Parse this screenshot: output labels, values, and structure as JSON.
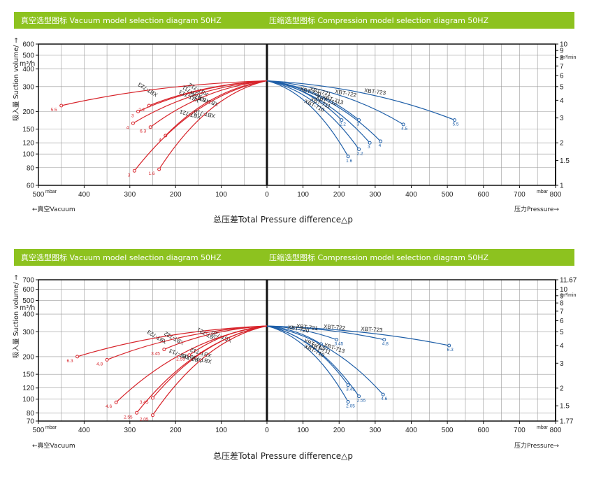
{
  "colors": {
    "header_bg": "#8dc21f",
    "vacuum": "#d7232a",
    "compression": "#1f5fa8",
    "grid": "#999999",
    "frame": "#111111"
  },
  "charts": [
    {
      "vacuum_title": "真空选型图标  Vacuum model selection  diagram 50HZ",
      "compression_title": "压缩选型图标  Compression model selection  diagram 50HZ",
      "y_left_label": "吸入量 Suction volume/ →",
      "y_left_unit": "m³/h",
      "y_right_unit": "m³/min",
      "mbar_left": "mbar",
      "mbar_right": "mbar",
      "vacuum_label": "←真空Vacuum",
      "pressure_label": "压力Pressure→",
      "x_title": "总压差Total Pressure difference△p",
      "left_x_ticks": [
        "500",
        "400",
        "300",
        "200",
        "100",
        "0"
      ],
      "right_x_ticks": [
        "0",
        "100",
        "200",
        "300",
        "400",
        "500",
        "600",
        "700",
        "800"
      ],
      "left_y_ticks": [
        "600",
        "500",
        "400",
        "300",
        "200",
        "150",
        "120",
        "100",
        "80",
        "60"
      ],
      "right_y_ticks": [
        "10",
        "9",
        "8",
        "7",
        "6",
        "5",
        "4",
        "3",
        "2",
        "1.5",
        "1"
      ]
    },
    {
      "vacuum_title": "真空选型图标  Vacuum model selection  diagram 50HZ",
      "compression_title": "压缩选型图标  Compression model selection  diagram 50HZ",
      "y_left_label": "吸入量 Suction volume/ →",
      "y_left_unit": "m³/h",
      "y_right_unit": "m³/min",
      "mbar_left": "mbar",
      "mbar_right": "mbar",
      "vacuum_label": "←真空Vacuum",
      "pressure_label": "压力Pressure→",
      "x_title": "总压差Total Pressure difference△p",
      "left_x_ticks": [
        "500",
        "400",
        "300",
        "200",
        "100",
        "0"
      ],
      "right_x_ticks": [
        "0",
        "100",
        "200",
        "300",
        "400",
        "500",
        "600",
        "700",
        "800"
      ],
      "left_y_ticks": [
        "700",
        "600",
        "500",
        "400",
        "300",
        "200",
        "150",
        "120",
        "100",
        "80",
        "70"
      ],
      "right_y_ticks": [
        "11.67",
        "10",
        "9",
        "8",
        "7",
        "6",
        "5",
        "4",
        "3",
        "2",
        "1.5",
        "1.77"
      ]
    }
  ],
  "chart_data": [
    {
      "type": "line",
      "title": "Vacuum model selection diagram 50HZ",
      "xlabel": "mbar",
      "ylabel": "m³/h",
      "xlim": [
        500,
        0
      ],
      "ylim": [
        60,
        600
      ],
      "y_scale": "log",
      "series": [
        {
          "name": "XBT-723",
          "end_label": "5.5",
          "points": [
            [
              0,
              330
            ],
            [
              450,
              220
            ]
          ]
        },
        {
          "name": "XBT-712",
          "end_label": "2.2",
          "points": [
            [
              0,
              330
            ],
            [
              258,
              220
            ]
          ]
        },
        {
          "name": "XBT-711",
          "end_label": "3",
          "points": [
            [
              0,
              330
            ],
            [
              282,
              200
            ]
          ]
        },
        {
          "name": "XBT-713",
          "end_label": "4",
          "points": [
            [
              0,
              330
            ],
            [
              293,
              165
            ]
          ]
        },
        {
          "name": "XBT-722",
          "end_label": "6.3",
          "points": [
            [
              0,
              330
            ],
            [
              255,
              155
            ]
          ]
        },
        {
          "name": "XBT-720",
          "end_label": "4",
          "points": [
            [
              0,
              330
            ],
            [
              222,
              135
            ]
          ]
        },
        {
          "name": "XBT-721",
          "end_label": "3",
          "points": [
            [
              0,
              330
            ],
            [
              290,
              76
            ]
          ]
        },
        {
          "name": "XBT-710",
          "end_label": "1.6",
          "points": [
            [
              0,
              330
            ],
            [
              236,
              78
            ]
          ]
        }
      ]
    },
    {
      "type": "line",
      "title": "Compression model selection diagram 50HZ",
      "xlabel": "mbar",
      "ylabel": "m³/min",
      "xlim": [
        0,
        800
      ],
      "ylim": [
        1,
        10
      ],
      "y_scale": "log",
      "series": [
        {
          "name": "XBT-723",
          "end_label": "5.5",
          "points": [
            [
              0,
              5.5
            ],
            [
              520,
              2.9
            ]
          ]
        },
        {
          "name": "XBT-722",
          "end_label": "4.5",
          "points": [
            [
              0,
              5.5
            ],
            [
              378,
              2.7
            ]
          ]
        },
        {
          "name": "XBT-713",
          "end_label": "4",
          "points": [
            [
              0,
              5.5
            ],
            [
              315,
              2.05
            ]
          ]
        },
        {
          "name": "XBT-721",
          "end_label": "3",
          "points": [
            [
              0,
              5.5
            ],
            [
              255,
              2.9
            ]
          ]
        },
        {
          "name": "XBT-720",
          "end_label": "2.2",
          "points": [
            [
              0,
              5.5
            ],
            [
              207,
              2.9
            ]
          ]
        },
        {
          "name": "XBT-712",
          "end_label": "3",
          "points": [
            [
              0,
              5.5
            ],
            [
              285,
              2.0
            ]
          ]
        },
        {
          "name": "XBT-711",
          "end_label": "2.2",
          "points": [
            [
              0,
              5.5
            ],
            [
              255,
              1.8
            ]
          ]
        },
        {
          "name": "XBT-710",
          "end_label": "1.6",
          "points": [
            [
              0,
              5.5
            ],
            [
              225,
              1.6
            ]
          ]
        }
      ]
    },
    {
      "type": "line",
      "title": "Vacuum model selection diagram 50HZ",
      "xlabel": "mbar",
      "ylabel": "m³/h",
      "xlim": [
        500,
        0
      ],
      "ylim": [
        70,
        700
      ],
      "y_scale": "log",
      "series": [
        {
          "name": "XBT-723",
          "end_label": "6.3",
          "points": [
            [
              0,
              330
            ],
            [
              415,
              200
            ]
          ]
        },
        {
          "name": "XBT-722",
          "end_label": "4.8",
          "points": [
            [
              0,
              330
            ],
            [
              350,
              190
            ]
          ]
        },
        {
          "name": "XBT-721",
          "end_label": "3.45",
          "points": [
            [
              0,
              330
            ],
            [
              225,
              225
            ]
          ]
        },
        {
          "name": "XBT-720",
          "end_label": "2.55",
          "points": [
            [
              0,
              330
            ],
            [
              170,
              205
            ]
          ]
        },
        {
          "name": "XBT-713",
          "end_label": "4.6",
          "points": [
            [
              0,
              330
            ],
            [
              330,
              95
            ]
          ]
        },
        {
          "name": "XBT-712",
          "end_label": "3.45",
          "points": [
            [
              0,
              330
            ],
            [
              250,
              102
            ]
          ]
        },
        {
          "name": "XBT-711",
          "end_label": "2.55",
          "points": [
            [
              0,
              330
            ],
            [
              285,
              80
            ]
          ]
        },
        {
          "name": "XBT-710",
          "end_label": "2.05",
          "points": [
            [
              0,
              330
            ],
            [
              250,
              77
            ]
          ]
        }
      ]
    },
    {
      "type": "line",
      "title": "Compression model selection diagram 50HZ",
      "xlabel": "mbar",
      "ylabel": "m³/min",
      "xlim": [
        0,
        800
      ],
      "ylim": [
        1.17,
        11.67
      ],
      "y_scale": "log",
      "series": [
        {
          "name": "XBT-723",
          "end_label": "6.3",
          "points": [
            [
              0,
              5.5
            ],
            [
              505,
              4.0
            ]
          ]
        },
        {
          "name": "XBT-722",
          "end_label": "4.8",
          "points": [
            [
              0,
              5.5
            ],
            [
              325,
              4.4
            ]
          ]
        },
        {
          "name": "XBT-721",
          "end_label": "3.45",
          "points": [
            [
              0,
              5.5
            ],
            [
              193,
              4.4
            ]
          ]
        },
        {
          "name": "XBT-720",
          "end_label": "2.55",
          "points": [
            [
              0,
              5.5
            ],
            [
              150,
              4.1
            ]
          ]
        },
        {
          "name": "XBT-713",
          "end_label": "4.6",
          "points": [
            [
              0,
              5.5
            ],
            [
              322,
              1.8
            ]
          ]
        },
        {
          "name": "XBT-712",
          "end_label": "3.45",
          "points": [
            [
              0,
              5.5
            ],
            [
              225,
              2.1
            ]
          ]
        },
        {
          "name": "XBT-711",
          "end_label": "2.55",
          "points": [
            [
              0,
              5.5
            ],
            [
              255,
              1.75
            ]
          ]
        },
        {
          "name": "XBT-710",
          "end_label": "2.05",
          "points": [
            [
              0,
              5.5
            ],
            [
              225,
              1.6
            ]
          ]
        }
      ]
    }
  ]
}
